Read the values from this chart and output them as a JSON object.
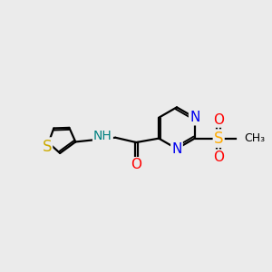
{
  "bg_color": "#ebebeb",
  "bond_color": "#000000",
  "N_color": "#0000ee",
  "O_color": "#ff0000",
  "S_thio_color": "#ccaa00",
  "S_sulfonyl_color": "#ffaa00",
  "NH_color": "#008080",
  "line_width": 1.6,
  "font_size": 10,
  "fig_width": 3.0,
  "fig_height": 3.0,
  "xlim": [
    0,
    10
  ],
  "ylim": [
    0,
    10
  ]
}
